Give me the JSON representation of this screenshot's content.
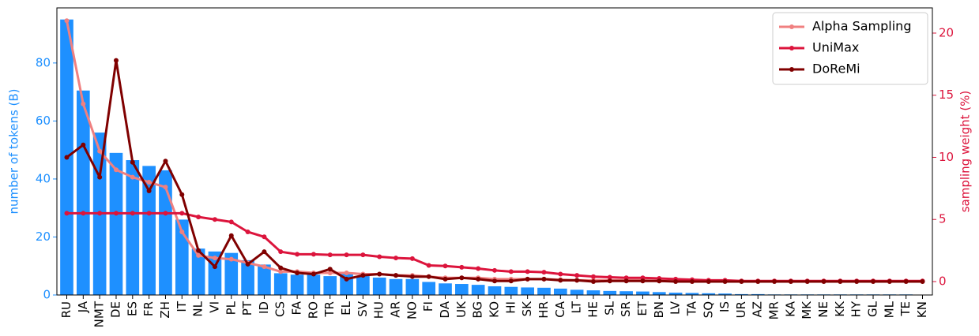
{
  "chart_data": {
    "type": "bar",
    "categories": [
      "RU",
      "JA",
      "NMT",
      "DE",
      "ES",
      "FR",
      "ZH",
      "IT",
      "NL",
      "VI",
      "PL",
      "PT",
      "ID",
      "CS",
      "FA",
      "RO",
      "TR",
      "EL",
      "SV",
      "HU",
      "AR",
      "NO",
      "FI",
      "DA",
      "UK",
      "BG",
      "KO",
      "HI",
      "SK",
      "HR",
      "CA",
      "LT",
      "HE",
      "SL",
      "SR",
      "ET",
      "BN",
      "LV",
      "TA",
      "SQ",
      "IS",
      "UR",
      "AZ",
      "MR",
      "KA",
      "MK",
      "NE",
      "KK",
      "HY",
      "GL",
      "ML",
      "TE",
      "KN"
    ],
    "ylabel": "number of tokens (B)",
    "ylabel_color": "#1e90ff",
    "y2label": "sampling weight (%)",
    "y2label_color": "#dc143c",
    "ylim": [
      0,
      99
    ],
    "yticks": [
      0,
      20,
      40,
      60,
      80
    ],
    "y2lim": [
      -1.08,
      22.03
    ],
    "y2ticks": [
      0,
      5,
      10,
      15,
      20
    ],
    "legend": "upper right",
    "series": [
      {
        "type": "bar",
        "axis": "y",
        "color": "#1e90ff",
        "values": [
          95,
          70.5,
          56,
          49,
          46.5,
          44.5,
          43,
          26,
          16,
          15,
          14.5,
          12,
          10.5,
          7.5,
          7,
          7,
          6.5,
          7.5,
          6.5,
          6,
          5.5,
          5.5,
          4.5,
          4,
          3.8,
          3.5,
          3,
          2.8,
          2.6,
          2.5,
          2.2,
          1.8,
          1.6,
          1.4,
          1.3,
          1.2,
          1,
          0.8,
          0.7,
          0.6,
          0.5,
          0.3,
          0.3,
          0.2,
          0.2,
          0.2,
          0.2,
          0.2,
          0.2,
          0.2,
          0.2,
          0.2,
          0.1
        ]
      },
      {
        "type": "line",
        "axis": "y2",
        "name": "Alpha Sampling",
        "color": "#f08080",
        "values": [
          21,
          14.3,
          10.5,
          9,
          8.4,
          8,
          7.6,
          4,
          2.1,
          1.9,
          1.8,
          1.5,
          1.2,
          0.8,
          0.8,
          0.7,
          0.7,
          0.7,
          0.6,
          0.6,
          0.5,
          0.5,
          0.4,
          0.3,
          0.3,
          0.3,
          0.2,
          0.2,
          0.2,
          0.2,
          0.15,
          0.1,
          0.1,
          0.1,
          0.1,
          0.1,
          0.05,
          0.05,
          0.05,
          0.05,
          0.03,
          0.02,
          0.02,
          0.02,
          0.02,
          0.02,
          0.02,
          0.02,
          0.02,
          0.02,
          0.02,
          0.02,
          0.01
        ]
      },
      {
        "type": "line",
        "axis": "y2",
        "name": "UniMax",
        "color": "#dc143c",
        "values": [
          5.5,
          5.5,
          5.5,
          5.5,
          5.5,
          5.5,
          5.5,
          5.5,
          5.2,
          5,
          4.8,
          4,
          3.6,
          2.4,
          2.2,
          2.2,
          2.15,
          2.15,
          2.15,
          2,
          1.9,
          1.85,
          1.3,
          1.25,
          1.15,
          1.05,
          0.9,
          0.8,
          0.8,
          0.75,
          0.6,
          0.5,
          0.4,
          0.35,
          0.3,
          0.3,
          0.25,
          0.2,
          0.15,
          0.1,
          0.1,
          0.05,
          0.05,
          0.05,
          0.05,
          0.05,
          0.05,
          0.05,
          0.05,
          0.05,
          0.05,
          0.05,
          0.05
        ]
      },
      {
        "type": "line",
        "axis": "y2",
        "name": "DoReMi",
        "color": "#800000",
        "values": [
          10,
          11,
          8.4,
          17.8,
          9.6,
          7.3,
          9.7,
          7,
          2.5,
          1.2,
          3.7,
          1.4,
          2.4,
          1.1,
          0.7,
          0.6,
          1,
          0.2,
          0.5,
          0.6,
          0.5,
          0.4,
          0.4,
          0.2,
          0.3,
          0.2,
          0.05,
          0.05,
          0.2,
          0.2,
          0.1,
          0.1,
          0,
          0.05,
          0.05,
          0.05,
          0.05,
          0,
          0,
          0,
          0,
          0,
          0,
          0,
          0,
          0,
          0,
          0,
          0,
          0,
          0,
          0,
          0
        ]
      }
    ]
  }
}
